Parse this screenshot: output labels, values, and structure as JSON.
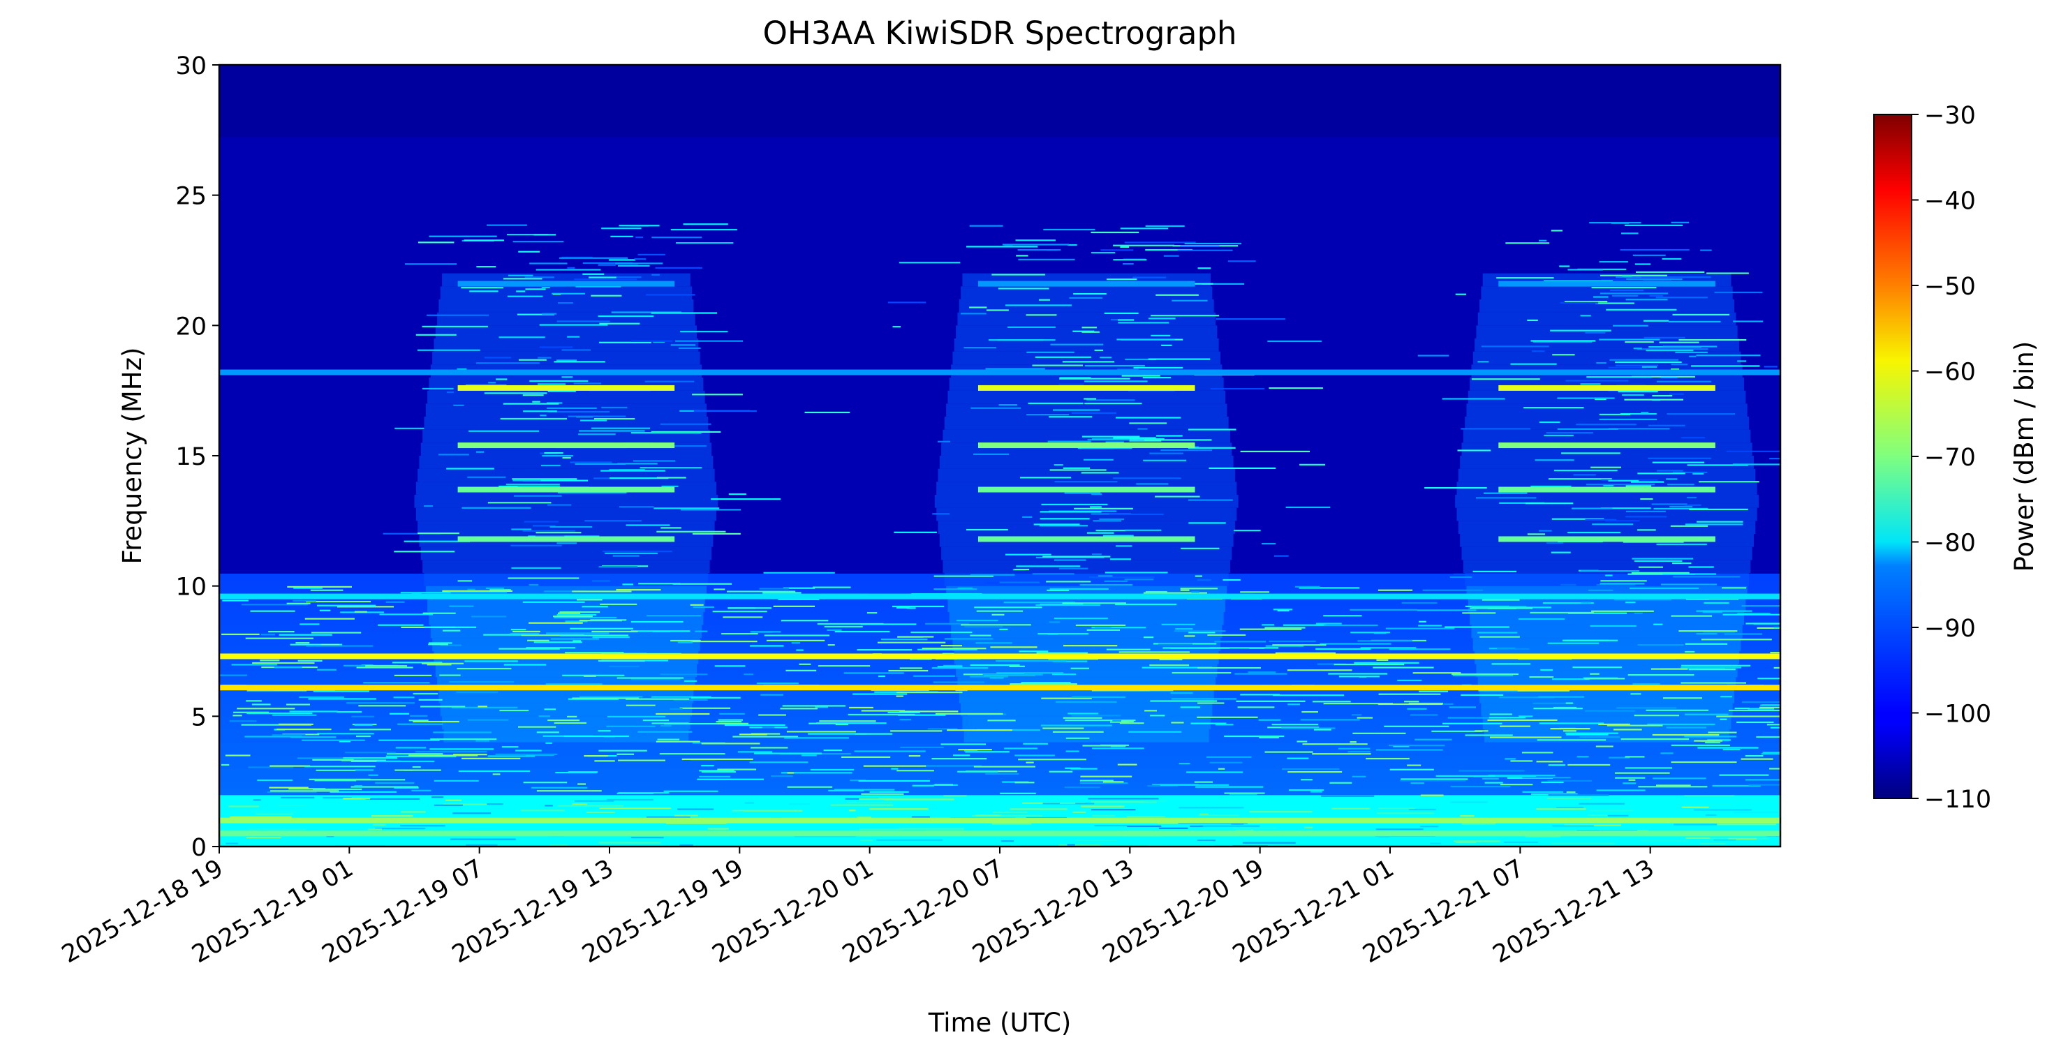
{
  "chart_data": {
    "type": "heatmap",
    "title": "OH3AA KiwiSDR Spectrograph",
    "xlabel": "Time (UTC)",
    "ylabel": "Frequency (MHz)",
    "x_ticks": [
      "2025-12-18 19",
      "2025-12-19 01",
      "2025-12-19 07",
      "2025-12-19 13",
      "2025-12-19 19",
      "2025-12-20 01",
      "2025-12-20 07",
      "2025-12-20 13",
      "2025-12-20 19",
      "2025-12-21 01",
      "2025-12-21 07",
      "2025-12-21 13"
    ],
    "xlim": [
      "2025-12-18 19:00",
      "2025-12-21 19:00"
    ],
    "y_ticks": [
      0,
      5,
      10,
      15,
      20,
      25,
      30
    ],
    "ylim": [
      0,
      30
    ],
    "colormap": "jet",
    "colorbar": {
      "label": "Power (dBm / bin)",
      "ticks": [
        -30,
        -40,
        -50,
        -60,
        -70,
        -80,
        -90,
        -100,
        -110
      ],
      "range": [
        -110,
        -30
      ]
    },
    "daytime_activity_centers_utc": [
      "2025-12-19 11",
      "2025-12-20 11",
      "2025-12-21 11"
    ],
    "persistent_bands_mhz": [
      {
        "freq": 0.5,
        "level_dbm": -72
      },
      {
        "freq": 1.0,
        "level_dbm": -68
      },
      {
        "freq": 6.1,
        "level_dbm": -58
      },
      {
        "freq": 7.3,
        "level_dbm": -60
      },
      {
        "freq": 9.6,
        "level_dbm": -82
      },
      {
        "freq": 18.2,
        "level_dbm": -88
      }
    ],
    "daytime_bands_mhz": [
      {
        "freq": 11.8,
        "level_dbm": -72
      },
      {
        "freq": 13.7,
        "level_dbm": -72
      },
      {
        "freq": 15.4,
        "level_dbm": -70
      },
      {
        "freq": 17.6,
        "level_dbm": -62
      },
      {
        "freq": 21.6,
        "level_dbm": -88
      }
    ],
    "background_level_dbm": -106
  },
  "colors": {
    "jet_low": "#00007f",
    "jet_mid": "#7fff7f",
    "jet_high": "#7f0000",
    "axes": "#000000",
    "background": "#ffffff"
  }
}
